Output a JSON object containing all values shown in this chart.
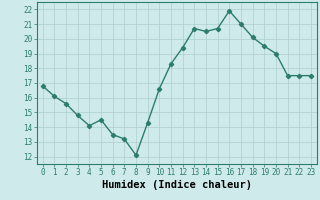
{
  "x": [
    0,
    1,
    2,
    3,
    4,
    5,
    6,
    7,
    8,
    9,
    10,
    11,
    12,
    13,
    14,
    15,
    16,
    17,
    18,
    19,
    20,
    21,
    22,
    23
  ],
  "y": [
    16.8,
    16.1,
    15.6,
    14.8,
    14.1,
    14.5,
    13.5,
    13.2,
    12.1,
    14.3,
    16.6,
    18.3,
    19.4,
    20.7,
    20.5,
    20.7,
    21.9,
    21.0,
    20.1,
    19.5,
    19.0,
    17.5,
    17.5,
    17.5
  ],
  "line_color": "#2d7d6e",
  "marker": "D",
  "markersize": 2.2,
  "linewidth": 1.0,
  "xlabel": "Humidex (Indice chaleur)",
  "xlim": [
    -0.5,
    23.5
  ],
  "ylim": [
    11.5,
    22.5
  ],
  "yticks": [
    12,
    13,
    14,
    15,
    16,
    17,
    18,
    19,
    20,
    21,
    22
  ],
  "xticks": [
    0,
    1,
    2,
    3,
    4,
    5,
    6,
    7,
    8,
    9,
    10,
    11,
    12,
    13,
    14,
    15,
    16,
    17,
    18,
    19,
    20,
    21,
    22,
    23
  ],
  "background_color": "#ceeaea",
  "grid_color": "#b0cece",
  "tick_fontsize": 5.5,
  "xlabel_fontsize": 7.5
}
